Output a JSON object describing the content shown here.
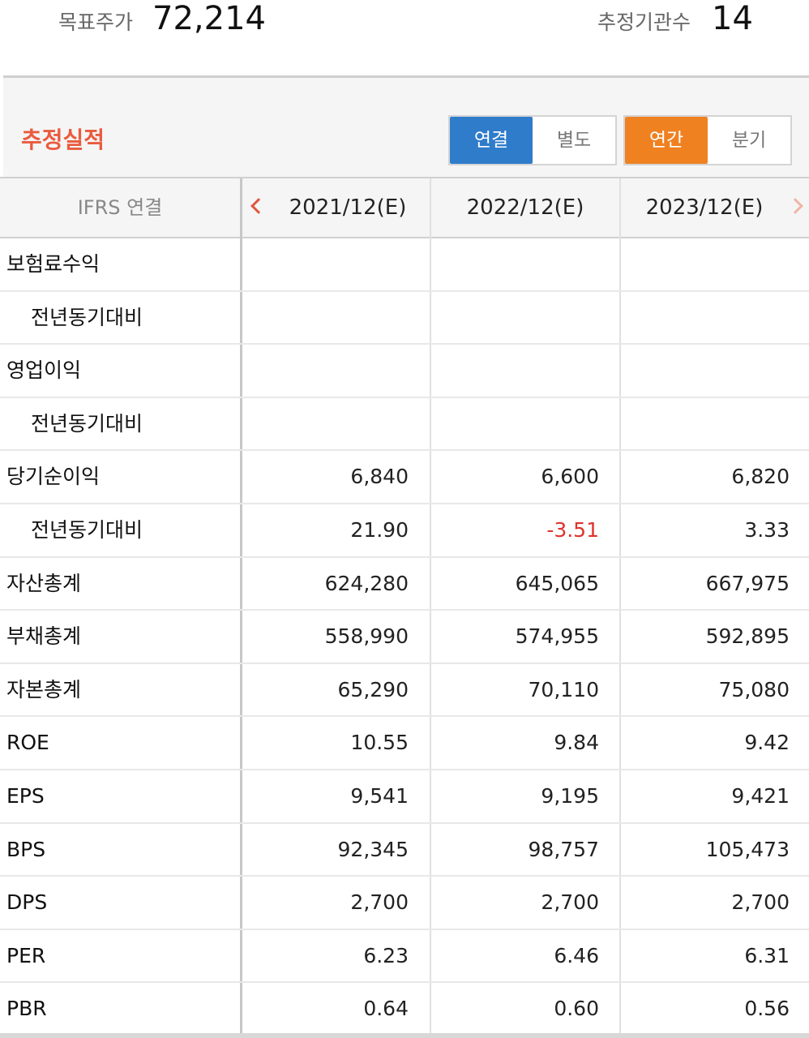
{
  "header": {
    "target_price_label": "목표주가",
    "target_price_value": "72,214",
    "institutions_label": "추정기관수",
    "institutions_value": "14"
  },
  "section": {
    "title": "추정실적",
    "basis_toggle": [
      "연결",
      "별도"
    ],
    "basis_selected": "연결",
    "period_toggle": [
      "연간",
      "분기"
    ],
    "period_selected": "연간"
  },
  "table": {
    "corner_label": "IFRS 연결",
    "columns": [
      "2021/12(E)",
      "2022/12(E)",
      "2023/12(E)"
    ],
    "rows": [
      {
        "name": "보험료수익",
        "sub": false,
        "values": [
          "",
          "",
          ""
        ]
      },
      {
        "name": "전년동기대비",
        "sub": true,
        "values": [
          "",
          "",
          ""
        ]
      },
      {
        "name": "영업이익",
        "sub": false,
        "values": [
          "",
          "",
          ""
        ]
      },
      {
        "name": "전년동기대비",
        "sub": true,
        "values": [
          "",
          "",
          ""
        ]
      },
      {
        "name": "당기순이익",
        "sub": false,
        "values": [
          "6,840",
          "6,600",
          "6,820"
        ]
      },
      {
        "name": "전년동기대비",
        "sub": true,
        "values": [
          "21.90",
          "-3.51",
          "3.33"
        ]
      },
      {
        "name": "자산총계",
        "sub": false,
        "values": [
          "624,280",
          "645,065",
          "667,975"
        ]
      },
      {
        "name": "부채총계",
        "sub": false,
        "values": [
          "558,990",
          "574,955",
          "592,895"
        ]
      },
      {
        "name": "자본총계",
        "sub": false,
        "values": [
          "65,290",
          "70,110",
          "75,080"
        ]
      },
      {
        "name": "ROE",
        "sub": false,
        "values": [
          "10.55",
          "9.84",
          "9.42"
        ]
      },
      {
        "name": "EPS",
        "sub": false,
        "values": [
          "9,541",
          "9,195",
          "9,421"
        ]
      },
      {
        "name": "BPS",
        "sub": false,
        "values": [
          "92,345",
          "98,757",
          "105,473"
        ]
      },
      {
        "name": "DPS",
        "sub": false,
        "values": [
          "2,700",
          "2,700",
          "2,700"
        ]
      },
      {
        "name": "PER",
        "sub": false,
        "values": [
          "6.23",
          "6.46",
          "6.31"
        ]
      },
      {
        "name": "PBR",
        "sub": false,
        "values": [
          "0.64",
          "0.60",
          "0.56"
        ]
      }
    ]
  },
  "colors": {
    "accent_title": "#ea5b3e",
    "basis_active": "#2f7ccb",
    "period_active": "#f08121",
    "negative": "#e0322c"
  }
}
